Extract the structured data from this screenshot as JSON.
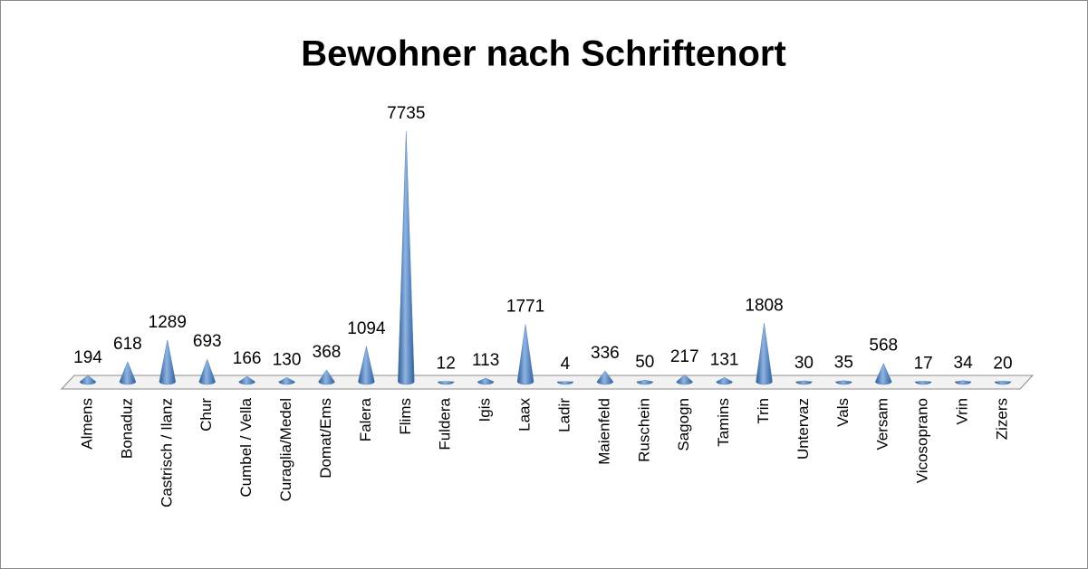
{
  "chart_data": {
    "type": "cone",
    "title": "Bewohner nach Schriftenort",
    "categories": [
      "Almens",
      "Bonaduz",
      "Castrisch / Ilanz",
      "Chur",
      "Cumbel / Vella",
      "Curaglia/Medel",
      "Domat/Ems",
      "Falera",
      "Flims",
      "Fuldera",
      "Igis",
      "Laax",
      "Ladir",
      "Maienfeld",
      "Ruschein",
      "Sagogn",
      "Tamins",
      "Trin",
      "Untervaz",
      "Vals",
      "Versam",
      "Vicosoprano",
      "Vrin",
      "Zizers"
    ],
    "values": [
      194,
      618,
      1289,
      693,
      166,
      130,
      368,
      1094,
      7735,
      12,
      113,
      1771,
      4,
      336,
      50,
      217,
      131,
      1808,
      30,
      35,
      568,
      17,
      34,
      20
    ],
    "color": "#4f81bd"
  }
}
